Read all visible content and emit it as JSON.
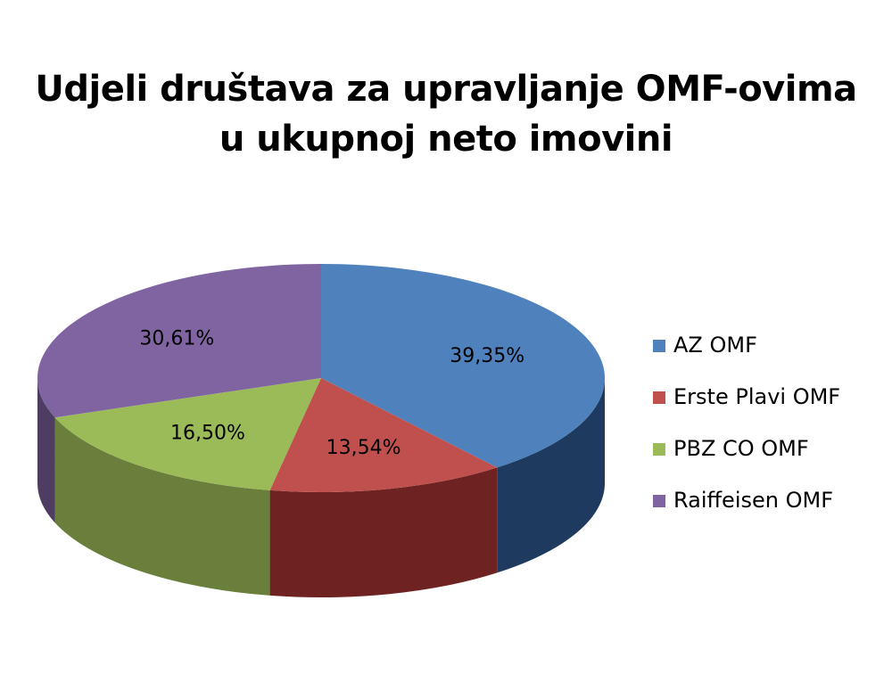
{
  "chart_data": {
    "type": "pie",
    "title": [
      "Udjeli društava za upravljanje OMF-ovima",
      "u ukupnoj neto imovini"
    ],
    "legend_position": "right",
    "series": [
      {
        "name": "AZ OMF",
        "value": 39.35,
        "label": "39,35%",
        "color": "#4f81bd",
        "side_color": "#1f3a5f"
      },
      {
        "name": "Erste Plavi OMF",
        "value": 13.54,
        "label": "13,54%",
        "color": "#c0504d",
        "side_color": "#6e2322"
      },
      {
        "name": "PBZ CO OMF",
        "value": 16.5,
        "label": "16,50%",
        "color": "#9bbb59",
        "side_color": "#6a7f3c"
      },
      {
        "name": "Raiffeisen OMF",
        "value": 30.61,
        "label": "30,61%",
        "color": "#8064a2",
        "side_color": "#4e3d63"
      }
    ]
  }
}
